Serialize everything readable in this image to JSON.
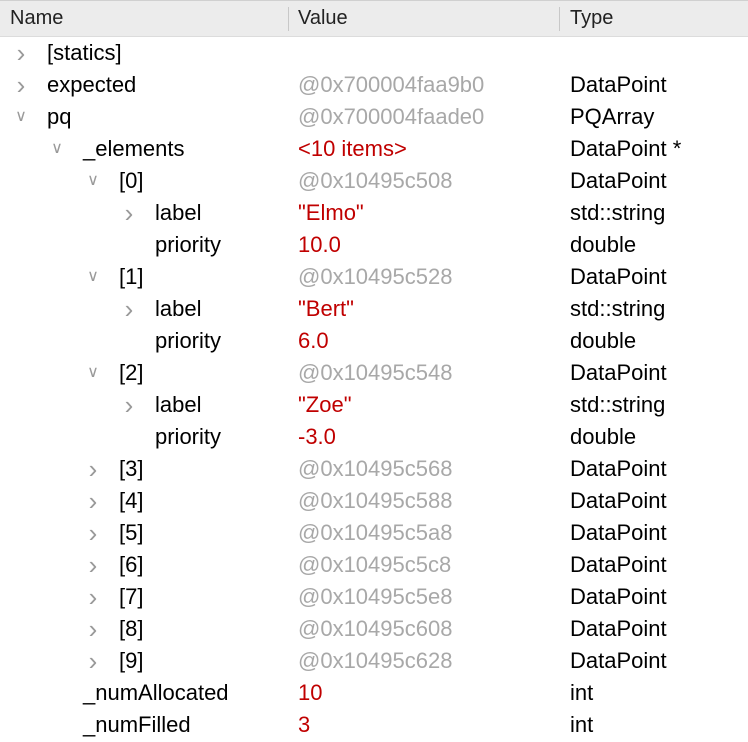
{
  "header": {
    "name": "Name",
    "value": "Value",
    "type": "Type"
  },
  "colors": {
    "address": "#a8a8a8",
    "value": "#c00000",
    "header_bg": "#ececec"
  },
  "rows": [
    {
      "name": "[statics]",
      "value": "",
      "type": "",
      "level": 0,
      "expander": "chevron-right",
      "kind": "addr"
    },
    {
      "name": "expected",
      "value": "@0x700004faa9b0",
      "type": "DataPoint",
      "level": 0,
      "expander": "chevron-right",
      "kind": "addr"
    },
    {
      "name": "pq",
      "value": "@0x700004faade0",
      "type": "PQArray",
      "level": 0,
      "expander": "chevron-down",
      "kind": "addr"
    },
    {
      "name": "_elements",
      "value": "<10 items>",
      "type": "DataPoint *",
      "level": 1,
      "expander": "chevron-down",
      "kind": "red"
    },
    {
      "name": "[0]",
      "value": "@0x10495c508",
      "type": "DataPoint",
      "level": 2,
      "expander": "chevron-down",
      "kind": "addr"
    },
    {
      "name": "label",
      "value": "\"Elmo\"",
      "type": "std::string",
      "level": 3,
      "expander": "chevron-right",
      "kind": "red"
    },
    {
      "name": "priority",
      "value": "10.0",
      "type": "double",
      "level": 3,
      "expander": "",
      "kind": "red"
    },
    {
      "name": "[1]",
      "value": "@0x10495c528",
      "type": "DataPoint",
      "level": 2,
      "expander": "chevron-down",
      "kind": "addr"
    },
    {
      "name": "label",
      "value": "\"Bert\"",
      "type": "std::string",
      "level": 3,
      "expander": "chevron-right",
      "kind": "red"
    },
    {
      "name": "priority",
      "value": "6.0",
      "type": "double",
      "level": 3,
      "expander": "",
      "kind": "red"
    },
    {
      "name": "[2]",
      "value": "@0x10495c548",
      "type": "DataPoint",
      "level": 2,
      "expander": "chevron-down",
      "kind": "addr"
    },
    {
      "name": "label",
      "value": "\"Zoe\"",
      "type": "std::string",
      "level": 3,
      "expander": "chevron-right",
      "kind": "red"
    },
    {
      "name": "priority",
      "value": "-3.0",
      "type": "double",
      "level": 3,
      "expander": "",
      "kind": "red"
    },
    {
      "name": "[3]",
      "value": "@0x10495c568",
      "type": "DataPoint",
      "level": 2,
      "expander": "chevron-right",
      "kind": "addr"
    },
    {
      "name": "[4]",
      "value": "@0x10495c588",
      "type": "DataPoint",
      "level": 2,
      "expander": "chevron-right",
      "kind": "addr"
    },
    {
      "name": "[5]",
      "value": "@0x10495c5a8",
      "type": "DataPoint",
      "level": 2,
      "expander": "chevron-right",
      "kind": "addr"
    },
    {
      "name": "[6]",
      "value": "@0x10495c5c8",
      "type": "DataPoint",
      "level": 2,
      "expander": "chevron-right",
      "kind": "addr"
    },
    {
      "name": "[7]",
      "value": "@0x10495c5e8",
      "type": "DataPoint",
      "level": 2,
      "expander": "chevron-right",
      "kind": "addr"
    },
    {
      "name": "[8]",
      "value": "@0x10495c608",
      "type": "DataPoint",
      "level": 2,
      "expander": "chevron-right",
      "kind": "addr"
    },
    {
      "name": "[9]",
      "value": "@0x10495c628",
      "type": "DataPoint",
      "level": 2,
      "expander": "chevron-right",
      "kind": "addr"
    },
    {
      "name": "_numAllocated",
      "value": "10",
      "type": "int",
      "level": 1,
      "expander": "",
      "kind": "red"
    },
    {
      "name": "_numFilled",
      "value": "3",
      "type": "int",
      "level": 1,
      "expander": "",
      "kind": "red"
    }
  ]
}
